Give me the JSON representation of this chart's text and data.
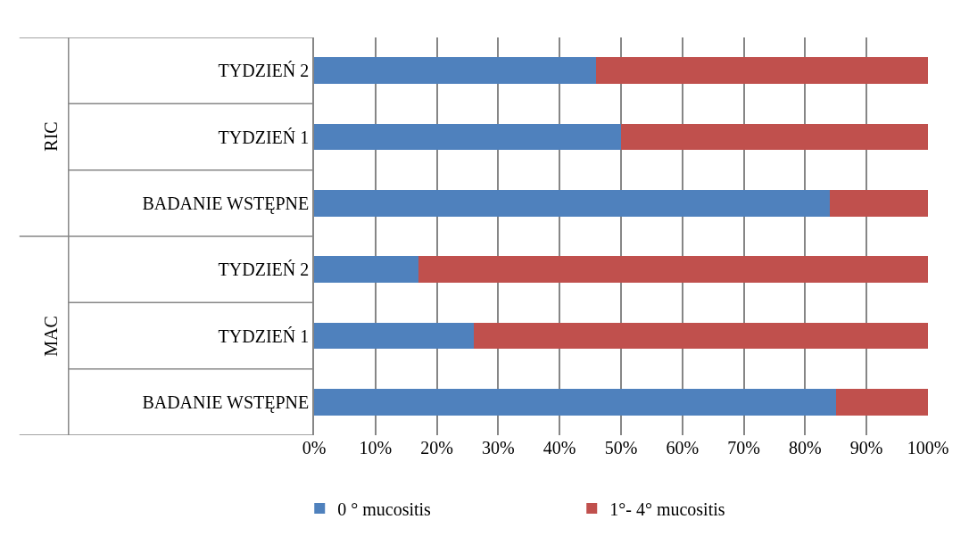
{
  "chart_data": {
    "type": "bar",
    "orientation": "horizontal",
    "stacked": true,
    "categories": [
      "TYDZIEŃ 2",
      "TYDZIEŃ 1",
      "BADANIE WSTĘPNE",
      "TYDZIEŃ 2",
      "TYDZIEŃ 1",
      "BADANIE WSTĘPNE"
    ],
    "series": [
      {
        "name": "0 ° mucositis",
        "color": "#4f81bd",
        "values": [
          46,
          50,
          84,
          17,
          26,
          85
        ]
      },
      {
        "name": "1°- 4° mucositis",
        "color": "#c0504d",
        "values": [
          54,
          50,
          16,
          83,
          74,
          15
        ]
      }
    ],
    "xlim": [
      0,
      100
    ],
    "xticks": [
      {
        "value": 0,
        "label": "0%"
      },
      {
        "value": 10,
        "label": "10%"
      },
      {
        "value": 20,
        "label": "20%"
      },
      {
        "value": 30,
        "label": "30%"
      },
      {
        "value": 40,
        "label": "40%"
      },
      {
        "value": 50,
        "label": "50%"
      },
      {
        "value": 60,
        "label": "60%"
      },
      {
        "value": 70,
        "label": "70%"
      },
      {
        "value": 80,
        "label": "80%"
      },
      {
        "value": 90,
        "label": "90%"
      },
      {
        "value": 100,
        "label": "100%"
      }
    ],
    "grid": "x",
    "legend": "bottom",
    "annotations": [
      "RIC",
      "MAC"
    ]
  }
}
